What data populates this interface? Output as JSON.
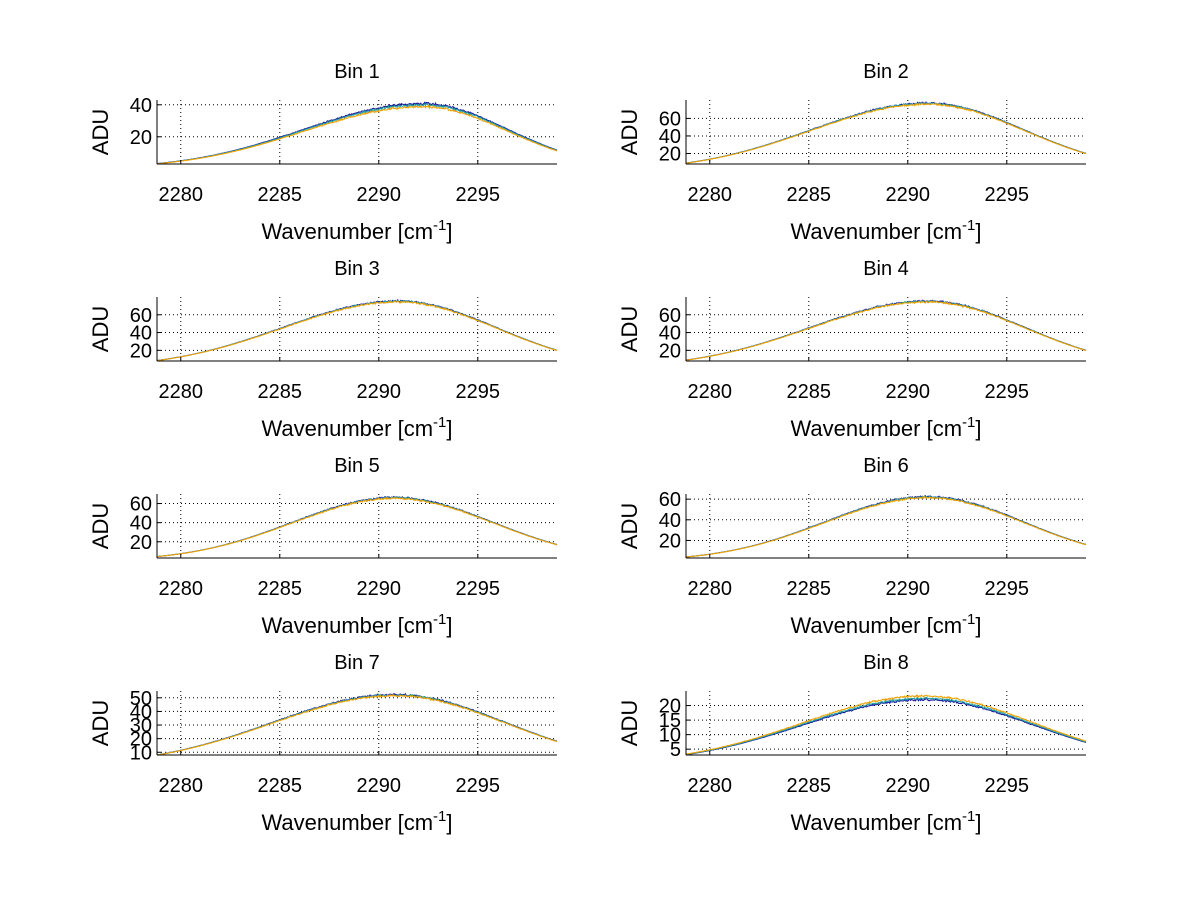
{
  "chart_data": [
    {
      "type": "line",
      "title": "Bin 1",
      "xlabel": "Wavenumber [cm",
      "xlabel_sup": "-1",
      "xlabel_end": "]",
      "ylabel": "ADU",
      "xlim": [
        2278.8,
        2299
      ],
      "ylim": [
        3,
        43
      ],
      "xticks": [
        2280,
        2285,
        2290,
        2295
      ],
      "yticks": [
        20,
        40
      ],
      "grid": true,
      "peak": 40,
      "peak_x": 2292.2,
      "start": 3.2,
      "end": 11.5,
      "noise": 1.4,
      "series": [
        {
          "color": "#1a1aa0",
          "offset": 0.8
        },
        {
          "color": "#20a0a0",
          "offset": 0.0
        },
        {
          "color": "#f0a000",
          "offset": -1.2
        }
      ]
    },
    {
      "type": "line",
      "title": "Bin 2",
      "xlabel": "Wavenumber [cm",
      "xlabel_sup": "-1",
      "xlabel_end": "]",
      "ylabel": "ADU",
      "xlim": [
        2278.8,
        2299
      ],
      "ylim": [
        8,
        81
      ],
      "xticks": [
        2280,
        2285,
        2290,
        2295
      ],
      "yticks": [
        20,
        40,
        60
      ],
      "grid": true,
      "peak": 77,
      "peak_x": 2291.0,
      "start": 9,
      "end": 20,
      "noise": 2.0,
      "series": [
        {
          "color": "#1a1aa0",
          "offset": 0.5
        },
        {
          "color": "#20a0a0",
          "offset": 0.0
        },
        {
          "color": "#f0a000",
          "offset": -0.8
        }
      ]
    },
    {
      "type": "line",
      "title": "Bin 3",
      "xlabel": "Wavenumber [cm",
      "xlabel_sup": "-1",
      "xlabel_end": "]",
      "ylabel": "ADU",
      "xlim": [
        2278.8,
        2299
      ],
      "ylim": [
        8,
        80
      ],
      "xticks": [
        2280,
        2285,
        2290,
        2295
      ],
      "yticks": [
        20,
        40,
        60
      ],
      "grid": true,
      "peak": 75,
      "peak_x": 2291.0,
      "start": 8.5,
      "end": 20,
      "noise": 2.0,
      "series": [
        {
          "color": "#1a1aa0",
          "offset": 0.5
        },
        {
          "color": "#20a0a0",
          "offset": 0.0
        },
        {
          "color": "#f0a000",
          "offset": -0.6
        }
      ]
    },
    {
      "type": "line",
      "title": "Bin 4",
      "xlabel": "Wavenumber [cm",
      "xlabel_sup": "-1",
      "xlabel_end": "]",
      "ylabel": "ADU",
      "xlim": [
        2278.8,
        2299
      ],
      "ylim": [
        8,
        80
      ],
      "xticks": [
        2280,
        2285,
        2290,
        2295
      ],
      "yticks": [
        20,
        40,
        60
      ],
      "grid": true,
      "peak": 75,
      "peak_x": 2291.0,
      "start": 9,
      "end": 20,
      "noise": 2.0,
      "series": [
        {
          "color": "#1a1aa0",
          "offset": 0.5
        },
        {
          "color": "#20a0a0",
          "offset": 0.0
        },
        {
          "color": "#f0a000",
          "offset": -0.6
        }
      ]
    },
    {
      "type": "line",
      "title": "Bin 5",
      "xlabel": "Wavenumber [cm",
      "xlabel_sup": "-1",
      "xlabel_end": "]",
      "ylabel": "ADU",
      "xlim": [
        2278.8,
        2299
      ],
      "ylim": [
        3,
        70
      ],
      "xticks": [
        2280,
        2285,
        2290,
        2295
      ],
      "yticks": [
        20,
        40,
        60
      ],
      "grid": true,
      "peak": 66,
      "peak_x": 2290.8,
      "start": 4.5,
      "end": 17,
      "noise": 1.8,
      "series": [
        {
          "color": "#1a1aa0",
          "offset": 0.5
        },
        {
          "color": "#20a0a0",
          "offset": 0.0
        },
        {
          "color": "#f0a000",
          "offset": -0.6
        }
      ]
    },
    {
      "type": "line",
      "title": "Bin 6",
      "xlabel": "Wavenumber [cm",
      "xlabel_sup": "-1",
      "xlabel_end": "]",
      "ylabel": "ADU",
      "xlim": [
        2278.8,
        2299
      ],
      "ylim": [
        3,
        65
      ],
      "xticks": [
        2280,
        2285,
        2290,
        2295
      ],
      "yticks": [
        20,
        40,
        60
      ],
      "grid": true,
      "peak": 62,
      "peak_x": 2291.0,
      "start": 4,
      "end": 16,
      "noise": 1.6,
      "series": [
        {
          "color": "#1a1aa0",
          "offset": 0.5
        },
        {
          "color": "#20a0a0",
          "offset": 0.0
        },
        {
          "color": "#f0a000",
          "offset": -0.6
        }
      ]
    },
    {
      "type": "line",
      "title": "Bin 7",
      "xlabel": "Wavenumber [cm",
      "xlabel_sup": "-1",
      "xlabel_end": "]",
      "ylabel": "ADU",
      "xlim": [
        2278.8,
        2299
      ],
      "ylim": [
        8,
        55
      ],
      "xticks": [
        2280,
        2285,
        2290,
        2295
      ],
      "yticks": [
        10,
        20,
        30,
        40,
        50
      ],
      "grid": true,
      "peak": 52,
      "peak_x": 2290.8,
      "start": 8,
      "end": 18,
      "noise": 1.4,
      "series": [
        {
          "color": "#1a1aa0",
          "offset": 0.4
        },
        {
          "color": "#20a0a0",
          "offset": 0.0
        },
        {
          "color": "#f0a000",
          "offset": -0.5
        }
      ]
    },
    {
      "type": "line",
      "title": "Bin 8",
      "xlabel": "Wavenumber [cm",
      "xlabel_sup": "-1",
      "xlabel_end": "]",
      "ylabel": "ADU",
      "xlim": [
        2278.8,
        2299
      ],
      "ylim": [
        3,
        25
      ],
      "xticks": [
        2280,
        2285,
        2290,
        2295
      ],
      "yticks": [
        5,
        10,
        15,
        20
      ],
      "grid": true,
      "peak": 22.5,
      "peak_x": 2290.8,
      "start": 3.2,
      "end": 7.5,
      "noise": 0.7,
      "series": [
        {
          "color": "#1a1aa0",
          "offset": -0.5
        },
        {
          "color": "#20a0a0",
          "offset": 0.0
        },
        {
          "color": "#f0a000",
          "offset": 0.8
        }
      ]
    }
  ]
}
